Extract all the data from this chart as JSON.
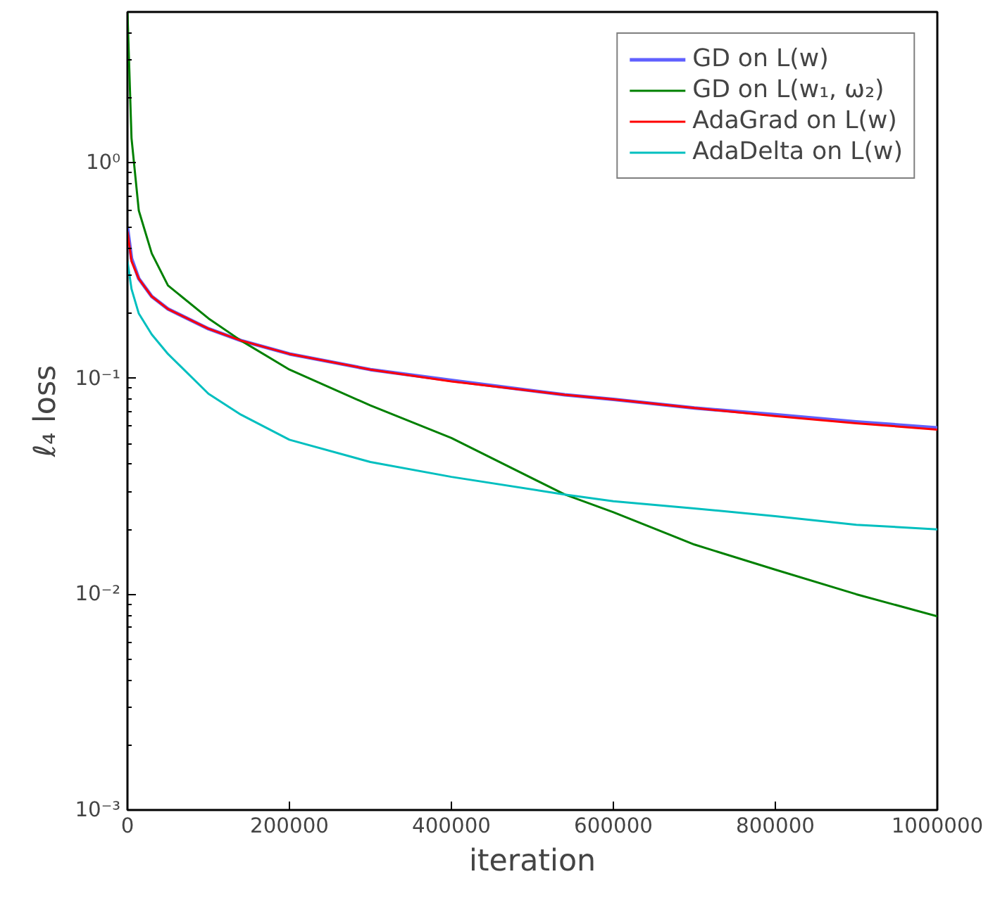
{
  "chart_data": {
    "type": "line",
    "xlabel": "iteration",
    "ylabel": "ℓ₄ loss",
    "log": "y",
    "xlim": [
      0,
      1000000
    ],
    "ylim": [
      0.001,
      5
    ],
    "xticks": [
      0,
      200000,
      400000,
      600000,
      800000,
      1000000
    ],
    "yticks": [
      {
        "value": 0.001,
        "label": "10⁻³"
      },
      {
        "value": 0.01,
        "label": "10⁻²"
      },
      {
        "value": 0.1,
        "label": "10⁻¹"
      },
      {
        "value": 1,
        "label": "10⁰"
      }
    ],
    "grid": false,
    "legend": "top right",
    "marker": "none",
    "line_style": "solid",
    "x": [
      0,
      5000,
      14000,
      30000,
      50000,
      100000,
      140000,
      200000,
      300000,
      400000,
      540000,
      600000,
      700000,
      800000,
      900000,
      1000000
    ],
    "series": [
      {
        "name": "GD on L(w)",
        "color": "#6060ff",
        "values": [
          0.5,
          0.36,
          0.29,
          0.24,
          0.21,
          0.17,
          0.15,
          0.13,
          0.11,
          0.098,
          0.084,
          0.08,
          0.073,
          0.068,
          0.063,
          0.059
        ]
      },
      {
        "name": "GD on L(w₁, ω₂)",
        "color": "#008000",
        "values": [
          5,
          1.3,
          0.6,
          0.38,
          0.27,
          0.19,
          0.15,
          0.11,
          0.075,
          0.053,
          0.029,
          0.024,
          0.017,
          0.013,
          0.01,
          0.0079
        ]
      },
      {
        "name": "AdaGrad on L(w)",
        "color": "#ff0000",
        "values": [
          0.48,
          0.35,
          0.29,
          0.24,
          0.21,
          0.17,
          0.15,
          0.13,
          0.11,
          0.097,
          0.084,
          0.08,
          0.073,
          0.067,
          0.062,
          0.058
        ]
      },
      {
        "name": "AdaDelta on L(w)",
        "color": "#00bfbf",
        "values": [
          0.35,
          0.26,
          0.2,
          0.16,
          0.13,
          0.085,
          0.068,
          0.052,
          0.041,
          0.035,
          0.029,
          0.027,
          0.025,
          0.023,
          0.021,
          0.02
        ]
      }
    ]
  }
}
